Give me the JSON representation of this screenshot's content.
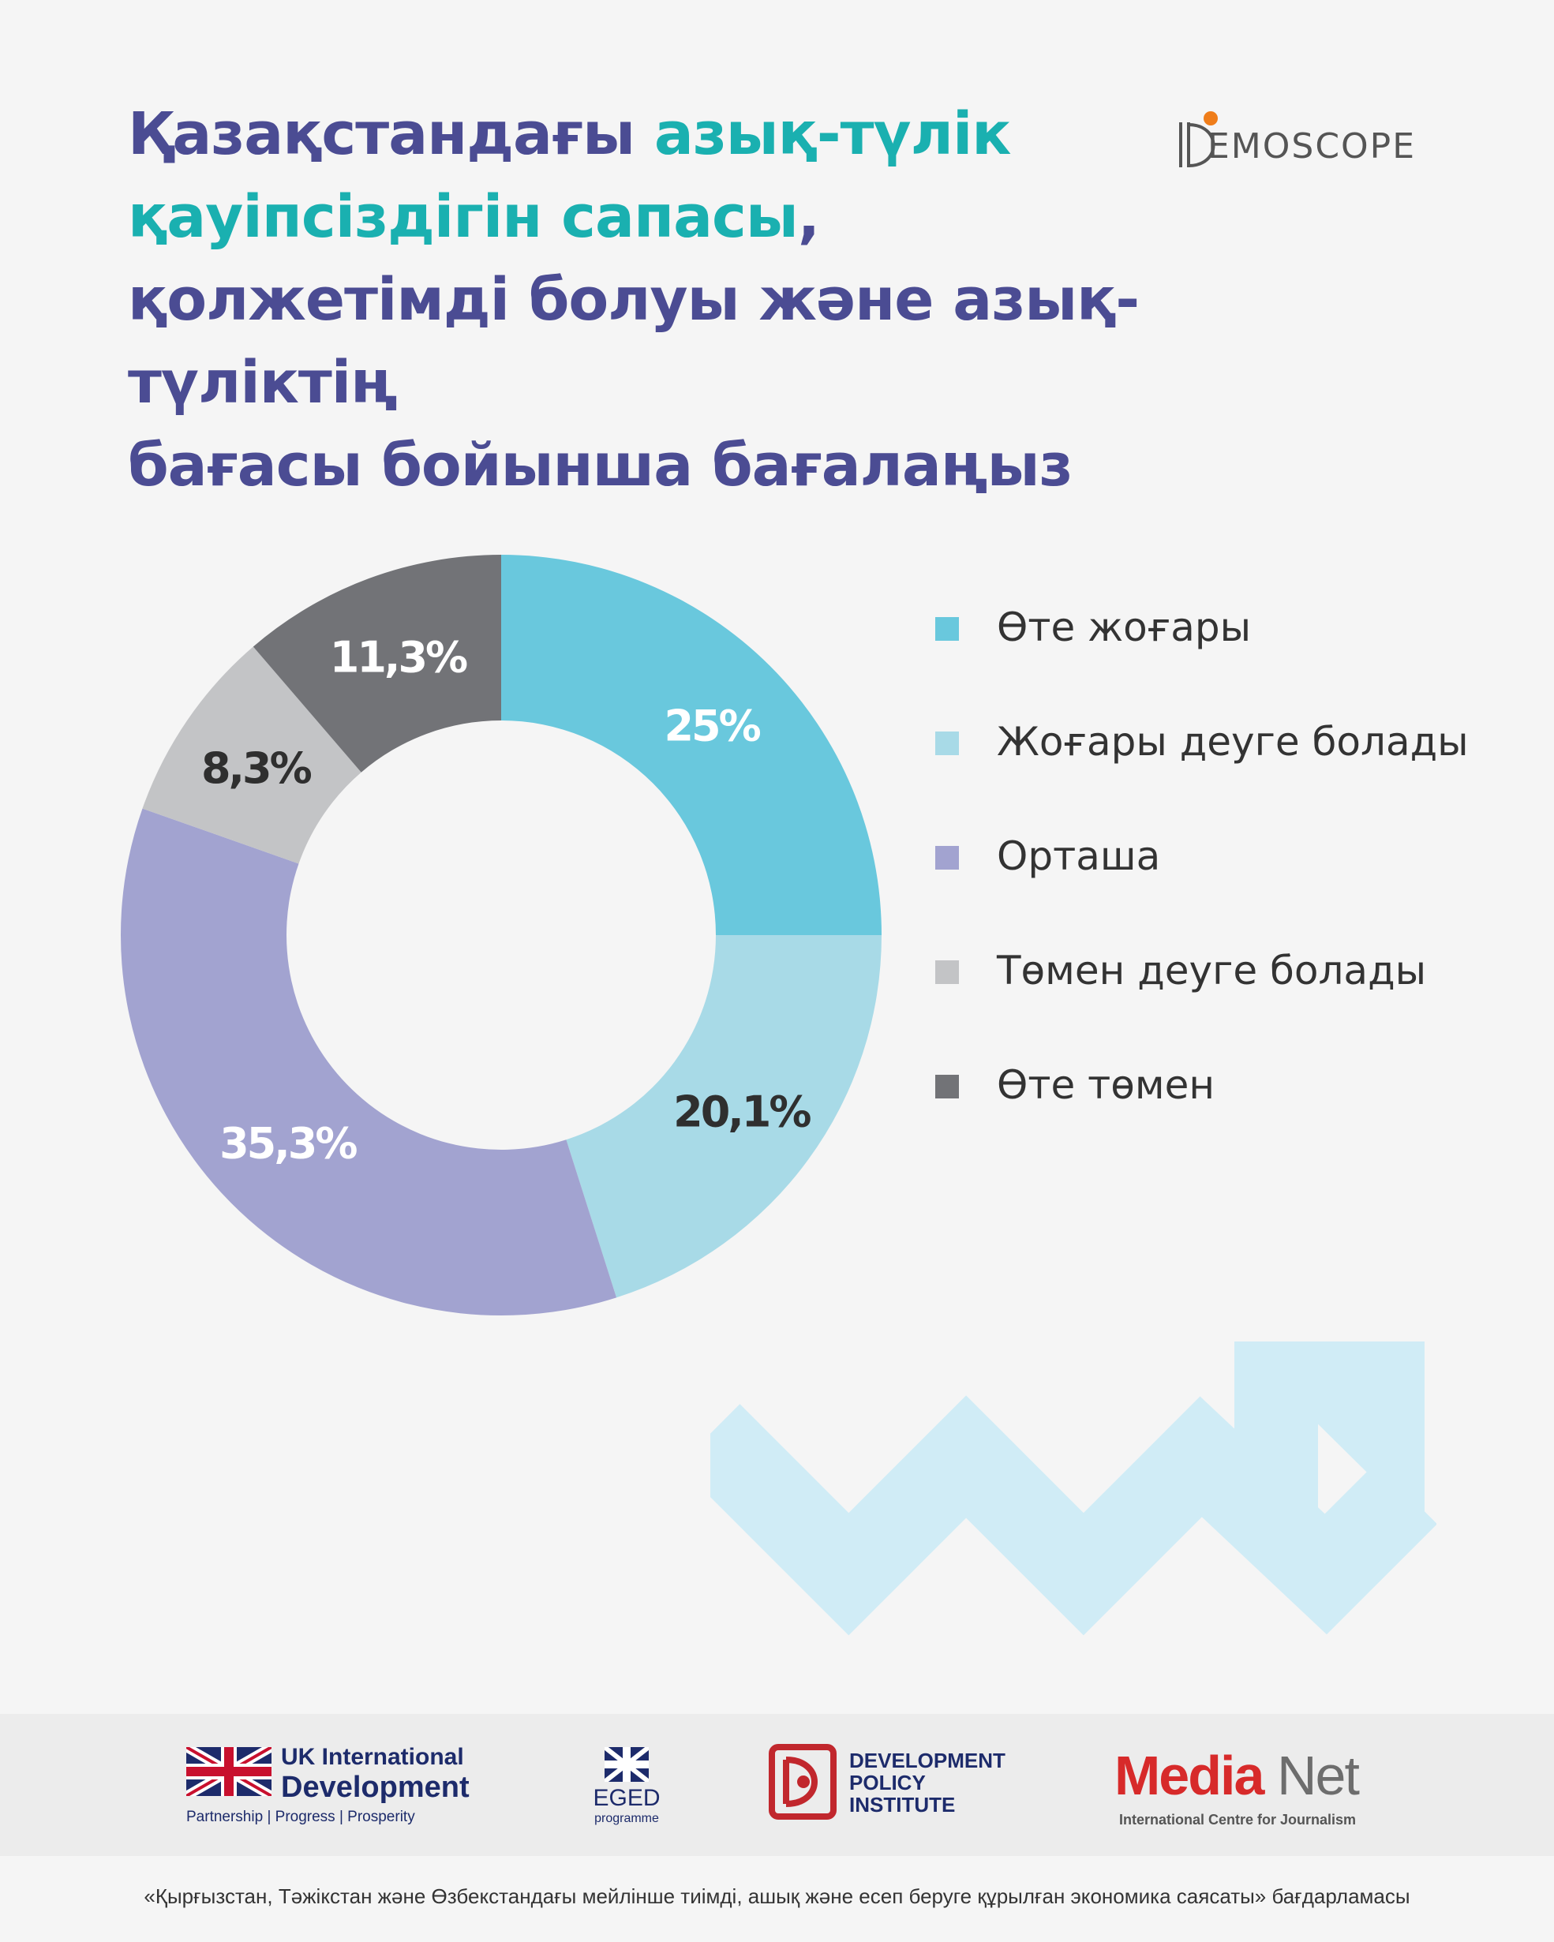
{
  "header": {
    "title_line1_a": "Қазақстандағы ",
    "title_line1_b": "азық-түлік",
    "title_line2_a": "қауіпсіздігін сапасы",
    "title_line2_b": ",",
    "title_line3": "қолжетімді болуы және азық-түліктің",
    "title_line4": "бағасы бойынша бағалаңыз"
  },
  "logo": {
    "text": "EMOSCOPE"
  },
  "chart_data": {
    "type": "pie",
    "donut": true,
    "title": "Қазақстандағы азық-түлік қауіпсіздігін сапасы, қолжетімді болуы және азық-түліктің бағасы бойынша бағалаңыз",
    "legend_position": "right",
    "slices": [
      {
        "name": "Өте жоғары",
        "value": 25,
        "label": "25%",
        "color": "#69c8dd",
        "label_color": "#ffffff"
      },
      {
        "name": "Жоғары деуге болады",
        "value": 20.1,
        "label": "20,1%",
        "color": "#a8dae7",
        "label_color": "#2f2f2f"
      },
      {
        "name": "Орташа",
        "value": 35.3,
        "label": "35,3%",
        "color": "#a2a3d0",
        "label_color": "#ffffff"
      },
      {
        "name": "Төмен деуге болады",
        "value": 8.3,
        "label": "8,3%",
        "color": "#c3c4c6",
        "label_color": "#2f2f2f"
      },
      {
        "name": "Өте төмен",
        "value": 11.3,
        "label": "11,3%",
        "color": "#727377",
        "label_color": "#ffffff"
      }
    ]
  },
  "colors": {
    "title": "#4b4c93",
    "title_accent": "#1ab0b0",
    "decor_arrow": "#d0ecf6"
  },
  "footer": {
    "uk_line1": "UK International",
    "uk_line2": "Development",
    "uk_tagline": "Partnership   |   Progress   |   Prosperity",
    "eged_title": "EGED",
    "eged_sub": "programme",
    "dpi_lines": [
      "DEVELOPMENT",
      "POLICY",
      "INSTITUTE"
    ],
    "medianet_a": "Media",
    "medianet_b": "Net",
    "medianet_sub": "International Centre for Journalism",
    "caption": "«Қырғызстан, Тәжікстан және Өзбекстандағы мейлінше тиімді, ашық және есеп беруге құрылған экономика саясаты» бағдарламасы"
  }
}
